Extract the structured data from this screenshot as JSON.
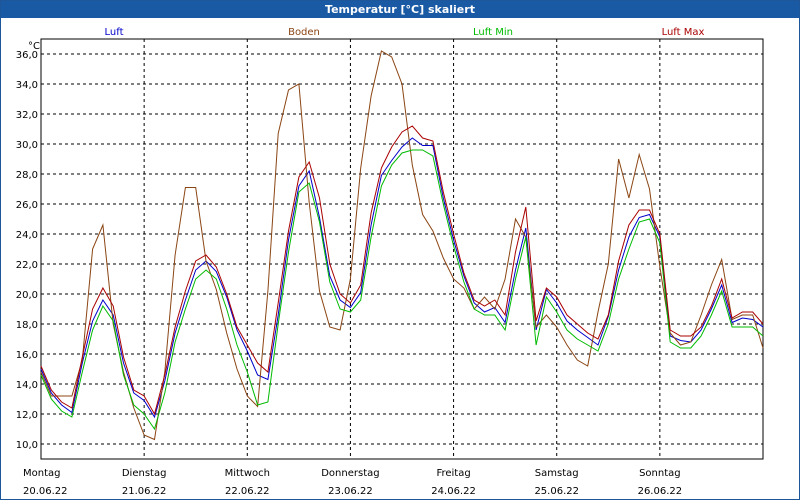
{
  "window": {
    "title": "Temperatur [°C] skaliert"
  },
  "chart_data": {
    "type": "line",
    "title": "Temperatur [°C] skaliert",
    "ylabel": "°C",
    "ylim": [
      9,
      37
    ],
    "xlim": [
      0,
      7
    ],
    "grid": true,
    "legend_placement": "top",
    "y_ticks": [
      "10,0",
      "12,0",
      "14,0",
      "16,0",
      "18,0",
      "20,0",
      "22,0",
      "24,0",
      "26,0",
      "28,0",
      "30,0",
      "32,0",
      "34,0",
      "36,0"
    ],
    "y_tick_values": [
      10,
      12,
      14,
      16,
      18,
      20,
      22,
      24,
      26,
      28,
      30,
      32,
      34,
      36
    ],
    "x_ticks": [
      {
        "day": "Montag",
        "date": "20.06.22"
      },
      {
        "day": "Dienstag",
        "date": "21.06.22"
      },
      {
        "day": "Mittwoch",
        "date": "22.06.22"
      },
      {
        "day": "Donnerstag",
        "date": "23.06.22"
      },
      {
        "day": "Freitag",
        "date": "24.06.22"
      },
      {
        "day": "Samstag",
        "date": "25.06.22"
      },
      {
        "day": "Sonntag",
        "date": "26.06.22"
      }
    ],
    "x": [
      0,
      0.1,
      0.2,
      0.3,
      0.4,
      0.5,
      0.6,
      0.7,
      0.8,
      0.9,
      1.0,
      1.1,
      1.2,
      1.3,
      1.4,
      1.5,
      1.6,
      1.7,
      1.8,
      1.9,
      2.0,
      2.1,
      2.2,
      2.3,
      2.4,
      2.5,
      2.6,
      2.7,
      2.8,
      2.9,
      3.0,
      3.1,
      3.2,
      3.3,
      3.4,
      3.5,
      3.6,
      3.7,
      3.8,
      3.9,
      4.0,
      4.1,
      4.2,
      4.3,
      4.4,
      4.5,
      4.6,
      4.7,
      4.8,
      4.9,
      5.0,
      5.1,
      5.2,
      5.3,
      5.4,
      5.5,
      5.6,
      5.7,
      5.8,
      5.9,
      6.0,
      6.1,
      6.2,
      6.3,
      6.4,
      6.5,
      6.6,
      6.7,
      6.8,
      6.9,
      7.0
    ],
    "series": [
      {
        "name": "Luft",
        "color": "#0000cc",
        "values": [
          15,
          13.4,
          12.6,
          12.1,
          15.4,
          18.2,
          19.6,
          18.6,
          15.4,
          13.4,
          12.9,
          11.8,
          14.2,
          17.4,
          19.6,
          21.6,
          22.2,
          21.5,
          19.8,
          17.6,
          16.2,
          14.6,
          14.3,
          18.6,
          23.6,
          27.2,
          28.2,
          25.1,
          21.2,
          19.6,
          19.1,
          20.1,
          24.6,
          27.9,
          28.9,
          29.8,
          30.4,
          29.9,
          29.9,
          26.4,
          23.6,
          21.2,
          19.4,
          18.8,
          19.1,
          18.1,
          21.6,
          24.4,
          17.6,
          20.3,
          19.4,
          18.2,
          17.6,
          17.1,
          16.6,
          18.5,
          21.6,
          23.8,
          25.1,
          25.3,
          23.8,
          17.2,
          16.9,
          16.8,
          17.6,
          19.0,
          20.6,
          18.1,
          18.4,
          18.3,
          17.8
        ]
      },
      {
        "name": "Boden",
        "color": "#8b4513",
        "values": [
          14.8,
          13.2,
          13.2,
          13.2,
          15.6,
          23.0,
          24.6,
          18.0,
          14.8,
          12.4,
          10.6,
          10.3,
          14.8,
          22.6,
          27.1,
          27.1,
          22.2,
          20.3,
          17.4,
          15.0,
          13.2,
          12.5,
          20.2,
          30.7,
          33.6,
          34.0,
          26.1,
          20.2,
          17.8,
          17.6,
          21.0,
          28.4,
          33.2,
          36.2,
          35.8,
          34.0,
          28.6,
          25.3,
          24.2,
          22.4,
          21.0,
          20.4,
          19.0,
          19.8,
          19.0,
          21.0,
          25.0,
          23.8,
          17.8,
          18.6,
          17.8,
          16.6,
          15.6,
          15.2,
          18.8,
          22.0,
          29.0,
          26.4,
          29.3,
          27.0,
          21.8,
          17.4,
          16.6,
          16.8,
          18.6,
          20.6,
          22.3,
          18.3,
          18.6,
          18.6,
          16.4
        ]
      },
      {
        "name": "Luft Min",
        "color": "#00bb00",
        "values": [
          14.6,
          13.0,
          12.2,
          11.8,
          14.8,
          17.6,
          19.2,
          18.2,
          14.6,
          12.6,
          12.0,
          11.0,
          13.4,
          16.8,
          19.0,
          21.0,
          21.6,
          21.0,
          19.0,
          16.6,
          14.8,
          12.6,
          12.8,
          18.0,
          22.8,
          26.8,
          27.4,
          24.8,
          20.8,
          19.0,
          18.8,
          19.6,
          23.8,
          27.2,
          28.6,
          29.4,
          29.6,
          29.6,
          29.2,
          26.0,
          23.2,
          20.8,
          19.0,
          18.6,
          18.6,
          17.6,
          21.0,
          23.8,
          16.6,
          19.8,
          18.8,
          17.6,
          17.0,
          16.6,
          16.2,
          18.0,
          21.0,
          23.0,
          24.8,
          25.0,
          23.4,
          16.8,
          16.4,
          16.4,
          17.2,
          18.6,
          20.2,
          17.8,
          17.8,
          17.8,
          17.2
        ]
      },
      {
        "name": "Luft Max",
        "color": "#aa0000",
        "values": [
          15.2,
          13.6,
          12.8,
          12.4,
          15.8,
          19.0,
          20.4,
          19.2,
          15.8,
          13.6,
          13.2,
          12.0,
          14.6,
          17.8,
          20.2,
          22.2,
          22.6,
          21.8,
          20.0,
          17.8,
          16.6,
          15.4,
          14.8,
          19.4,
          24.2,
          27.8,
          28.8,
          26.4,
          22.0,
          20.0,
          19.4,
          20.6,
          25.4,
          28.4,
          29.8,
          30.8,
          31.2,
          30.4,
          30.2,
          26.8,
          24.0,
          21.4,
          19.6,
          19.2,
          19.6,
          18.6,
          22.8,
          25.8,
          18.2,
          20.4,
          19.8,
          18.6,
          18.0,
          17.4,
          17.0,
          18.6,
          22.2,
          24.6,
          25.6,
          25.6,
          24.0,
          17.6,
          17.2,
          17.2,
          17.8,
          19.2,
          21.0,
          18.4,
          18.8,
          18.8,
          18.0
        ]
      }
    ]
  }
}
